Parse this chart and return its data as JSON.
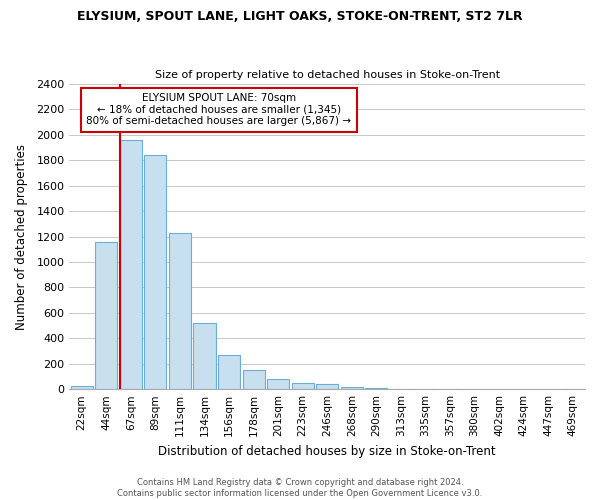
{
  "title": "ELYSIUM, SPOUT LANE, LIGHT OAKS, STOKE-ON-TRENT, ST2 7LR",
  "subtitle": "Size of property relative to detached houses in Stoke-on-Trent",
  "xlabel": "Distribution of detached houses by size in Stoke-on-Trent",
  "ylabel": "Number of detached properties",
  "bin_labels": [
    "22sqm",
    "44sqm",
    "67sqm",
    "89sqm",
    "111sqm",
    "134sqm",
    "156sqm",
    "178sqm",
    "201sqm",
    "223sqm",
    "246sqm",
    "268sqm",
    "290sqm",
    "313sqm",
    "335sqm",
    "357sqm",
    "380sqm",
    "402sqm",
    "424sqm",
    "447sqm",
    "469sqm"
  ],
  "bar_heights": [
    25,
    1155,
    1960,
    1840,
    1225,
    520,
    265,
    150,
    80,
    50,
    38,
    15,
    8,
    3,
    2,
    1,
    1,
    0,
    0,
    0,
    0
  ],
  "bar_color": "#c8dff0",
  "bar_edge_color": "#6baed6",
  "vline_index": 2,
  "vline_color": "#cc0000",
  "annotation_title": "ELYSIUM SPOUT LANE: 70sqm",
  "annotation_line1": "← 18% of detached houses are smaller (1,345)",
  "annotation_line2": "80% of semi-detached houses are larger (5,867) →",
  "annotation_box_color": "#cc0000",
  "ylim": [
    0,
    2400
  ],
  "yticks": [
    0,
    200,
    400,
    600,
    800,
    1000,
    1200,
    1400,
    1600,
    1800,
    2000,
    2200,
    2400
  ],
  "footer_line1": "Contains HM Land Registry data © Crown copyright and database right 2024.",
  "footer_line2": "Contains public sector information licensed under the Open Government Licence v3.0.",
  "background_color": "#ffffff",
  "grid_color": "#c8c8c8"
}
